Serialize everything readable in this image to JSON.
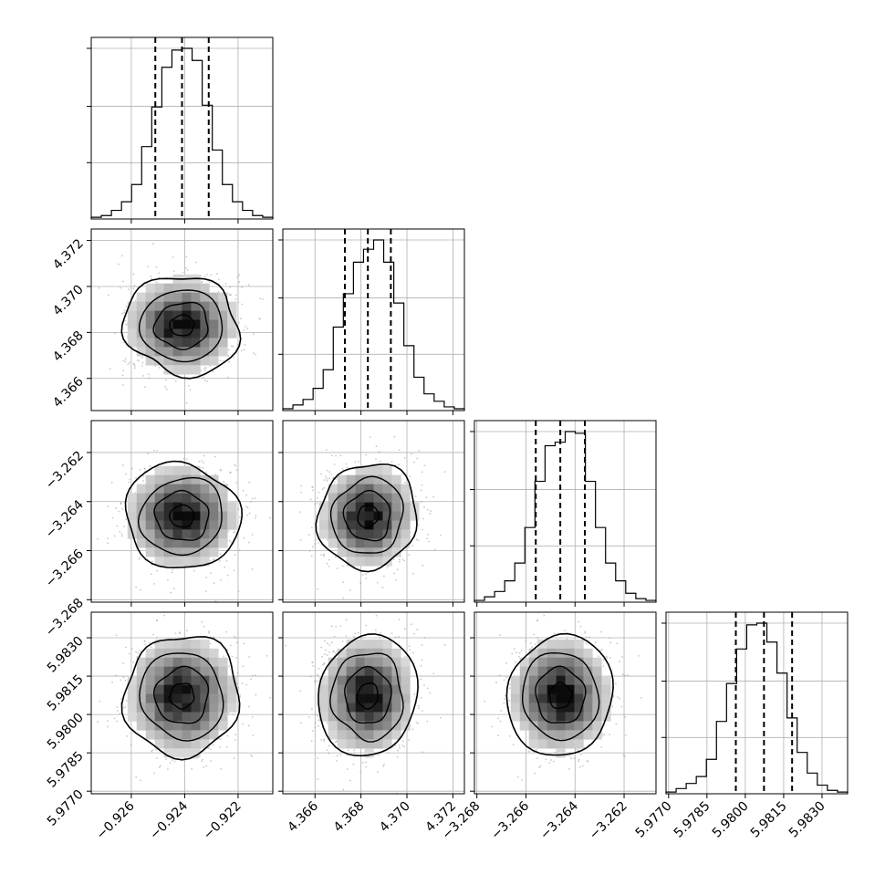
{
  "chart_data": {
    "type": "corner",
    "parameters": [
      {
        "index": 0,
        "ticks": [
          "−0.926",
          "−0.924",
          "−0.922"
        ],
        "tick_values": [
          -0.926,
          -0.924,
          -0.922
        ],
        "range": [
          -0.9275,
          -0.9207
        ],
        "quantiles": [
          -0.9251,
          -0.9241,
          -0.9231
        ],
        "hist_counts": [
          1,
          2,
          5,
          10,
          20,
          42,
          65,
          88,
          98,
          99,
          92,
          66,
          40,
          20,
          10,
          5,
          2,
          1
        ]
      },
      {
        "index": 1,
        "ticks": [
          "4.366",
          "4.368",
          "4.370",
          "4.372"
        ],
        "tick_values": [
          4.366,
          4.368,
          4.37,
          4.372
        ],
        "range": [
          4.3646,
          4.3725
        ],
        "quantiles": [
          4.3673,
          4.3683,
          4.3693
        ],
        "hist_counts": [
          1,
          3,
          6,
          12,
          22,
          45,
          63,
          80,
          87,
          92,
          80,
          58,
          35,
          18,
          9,
          5,
          2,
          1
        ]
      },
      {
        "index": 2,
        "ticks": [
          "−3.268",
          "−3.266",
          "−3.264",
          "−3.262"
        ],
        "tick_values": [
          -3.268,
          -3.266,
          -3.264,
          -3.262
        ],
        "range": [
          -3.2681,
          -3.2607
        ],
        "quantiles": [
          -3.2656,
          -3.2646,
          -3.2636
        ],
        "hist_counts": [
          1,
          3,
          6,
          12,
          22,
          42,
          68,
          88,
          90,
          96,
          95,
          68,
          42,
          22,
          12,
          5,
          2,
          1
        ]
      },
      {
        "index": 3,
        "ticks": [
          "5.9770",
          "5.9785",
          "5.9800",
          "5.9815",
          "5.9830"
        ],
        "tick_values": [
          5.977,
          5.9785,
          5.98,
          5.9815,
          5.983
        ],
        "range": [
          5.9769,
          5.984
        ],
        "quantiles": [
          5.97963,
          5.98073,
          5.98183
        ],
        "hist_counts": [
          1,
          3,
          6,
          10,
          20,
          42,
          64,
          84,
          98,
          99,
          88,
          70,
          44,
          24,
          12,
          5,
          2,
          1
        ]
      }
    ],
    "grid": true,
    "title": "",
    "contour_levels": 4
  }
}
